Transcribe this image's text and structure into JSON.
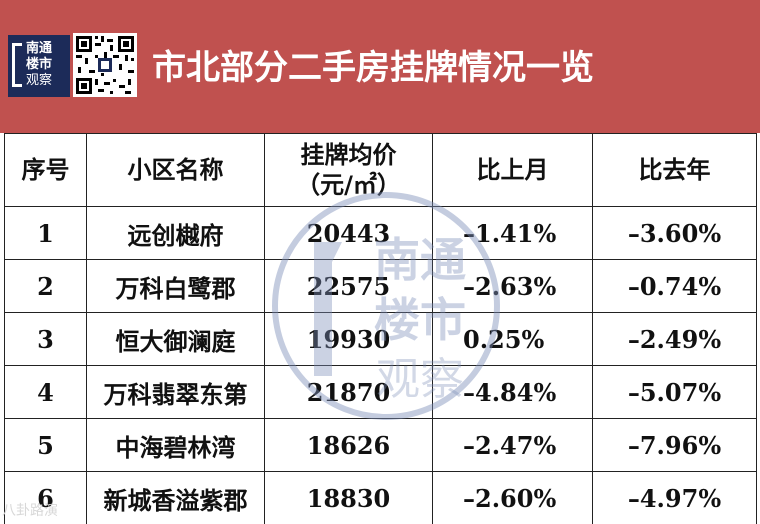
{
  "header": {
    "title": "市北部分二手房挂牌情况一览",
    "logo": {
      "line1": "南通",
      "line2": "楼市",
      "line3": "观察"
    }
  },
  "table": {
    "columns": [
      "序号",
      "小区名称",
      "挂牌均价",
      "比上月",
      "比去年"
    ],
    "price_unit": "（元/㎡）",
    "rows": [
      {
        "no": "1",
        "name": "远创樾府",
        "price": "20443",
        "mom": "–1.41%",
        "yoy": "–3.60%"
      },
      {
        "no": "2",
        "name": "万科白鹭郡",
        "price": "22575",
        "mom": "–2.63%",
        "yoy": "–0.74%"
      },
      {
        "no": "3",
        "name": "恒大御澜庭",
        "price": "19930",
        "mom": "0.25%",
        "yoy": "–2.49%"
      },
      {
        "no": "4",
        "name": "万科翡翠东第",
        "price": "21870",
        "mom": "–4.84%",
        "yoy": "–5.07%"
      },
      {
        "no": "5",
        "name": "中海碧林湾",
        "price": "18626",
        "mom": "–2.47%",
        "yoy": "–7.96%"
      },
      {
        "no": "6",
        "name": "新城香溢紫郡",
        "price": "18830",
        "mom": "–2.60%",
        "yoy": "–4.97%"
      }
    ]
  },
  "watermark": {
    "line1": "南通",
    "line2": "楼市",
    "line3": "观察"
  },
  "corner_mark": "八卦路演",
  "colors": {
    "header_bg": "#c0514f",
    "logo_bg": "#1c2b59",
    "border": "#222222"
  }
}
